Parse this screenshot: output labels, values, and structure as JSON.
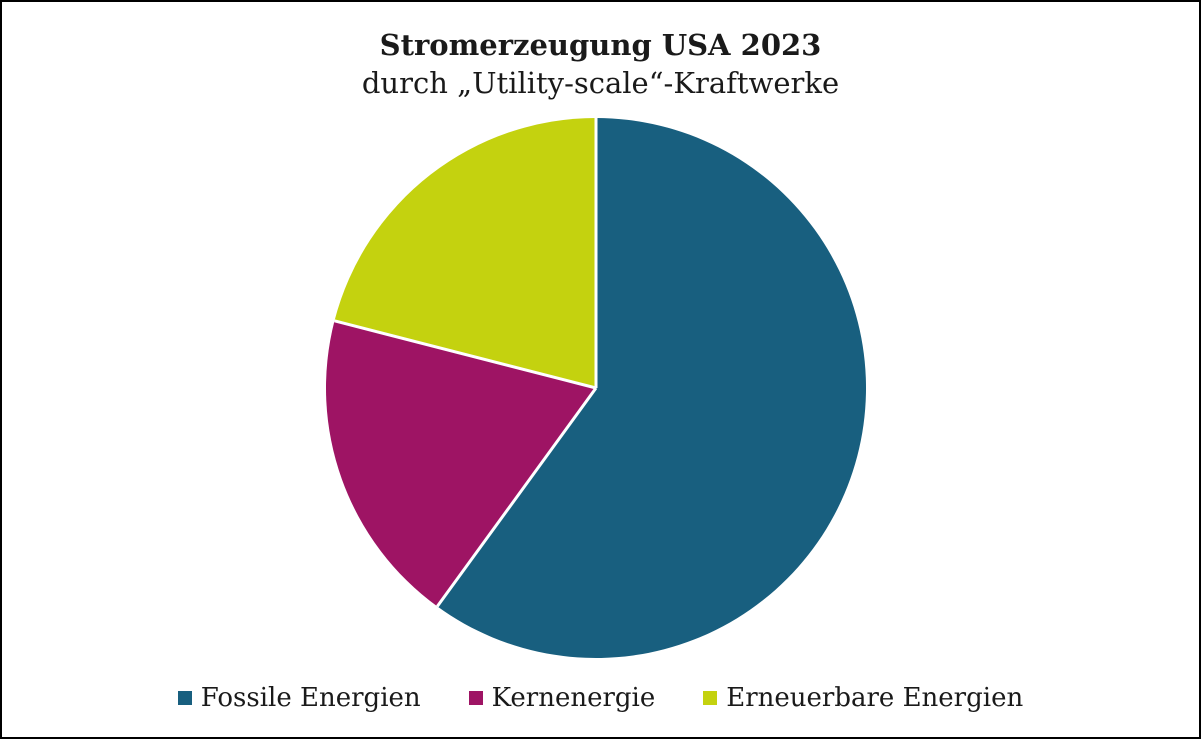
{
  "frame": {
    "border_color": "#000000",
    "background_color": "#ffffff",
    "text_color": "#1a1a1a"
  },
  "title": {
    "line1": "Stromerzeugung USA 2023",
    "line2": "durch „Utility-scale“-Kraftwerke"
  },
  "chart_data": {
    "type": "pie",
    "title": "Stromerzeugung USA 2023 durch „Utility-scale“-Kraftwerke",
    "unit": "percent",
    "start_angle_deg": 0,
    "direction": "clockwise",
    "separator_color": "#ffffff",
    "legend_position": "bottom",
    "slices": [
      {
        "label": "Fossile Energien",
        "value": 60,
        "color": "#185f7f"
      },
      {
        "label": "Kernenergie",
        "value": 19,
        "color": "#9e1464"
      },
      {
        "label": "Erneuerbare Energien",
        "value": 21,
        "color": "#c4d20f"
      }
    ]
  }
}
